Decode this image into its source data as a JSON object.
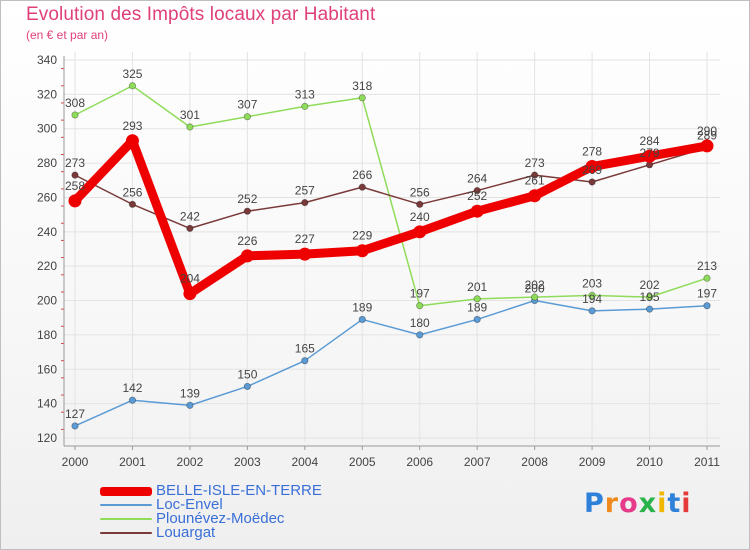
{
  "chart_data": {
    "type": "line",
    "title": "Evolution des Impôts locaux par Habitant",
    "subtitle": "(en € et par an)",
    "xlabel": "",
    "ylabel": "",
    "categories": [
      "2000",
      "2001",
      "2002",
      "2003",
      "2004",
      "2005",
      "2006",
      "2007",
      "2008",
      "2009",
      "2010",
      "2011"
    ],
    "ylim": [
      120,
      340
    ],
    "yticks": [
      120,
      140,
      160,
      180,
      200,
      220,
      240,
      260,
      280,
      300,
      320,
      340
    ],
    "grid": true,
    "legend_position": "bottom-left",
    "series": [
      {
        "name": "BELLE-ISLE-EN-TERRE",
        "color": "#ee0000",
        "values": [
          258,
          293,
          204,
          226,
          227,
          229,
          240,
          252,
          261,
          278,
          284,
          290
        ]
      },
      {
        "name": "Loc-Envel",
        "color": "#5b9bd5",
        "values": [
          127,
          142,
          139,
          150,
          165,
          189,
          180,
          189,
          200,
          194,
          195,
          197
        ]
      },
      {
        "name": "Plounévez-Moëdec",
        "color": "#8fdc5a",
        "values": [
          308,
          325,
          301,
          307,
          313,
          318,
          197,
          201,
          202,
          203,
          202,
          213
        ]
      },
      {
        "name": "Louargat",
        "color": "#7a3a3a",
        "values": [
          273,
          256,
          242,
          252,
          257,
          266,
          256,
          264,
          273,
          269,
          279,
          289
        ]
      }
    ]
  },
  "logo": {
    "letters": [
      "P",
      "r",
      "o",
      "x",
      "i",
      "t",
      "i"
    ],
    "colors": [
      "#2f80d8",
      "#f08a1c",
      "#e63a8a",
      "#2ab34a",
      "#f0b800",
      "#2f80d8",
      "#e63a3a"
    ]
  }
}
